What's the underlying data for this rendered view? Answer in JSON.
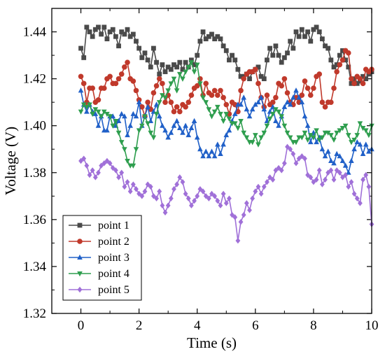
{
  "chart_data": {
    "type": "line",
    "xlabel": "Time (s)",
    "ylabel": "Voltage (V)",
    "xlim": [
      -1,
      10
    ],
    "ylim": [
      1.32,
      1.45
    ],
    "xticks": [
      "0",
      "2",
      "4",
      "6",
      "8",
      "10"
    ],
    "yticks": [
      "1.32",
      "1.34",
      "1.36",
      "1.38",
      "1.40",
      "1.42",
      "1.44"
    ],
    "legend_placement": "bottom-left",
    "series": [
      {
        "name": "point 1",
        "color": "#4a4a4a",
        "marker": "square",
        "x": [
          0,
          0.1,
          0.2,
          0.3,
          0.4,
          0.5,
          0.6,
          0.7,
          0.8,
          0.9,
          1.0,
          1.1,
          1.2,
          1.3,
          1.4,
          1.5,
          1.6,
          1.7,
          1.8,
          1.9,
          2.0,
          2.1,
          2.2,
          2.3,
          2.4,
          2.5,
          2.6,
          2.7,
          2.8,
          2.9,
          3.0,
          3.1,
          3.2,
          3.3,
          3.4,
          3.5,
          3.6,
          3.7,
          3.8,
          3.9,
          4.0,
          4.1,
          4.2,
          4.3,
          4.4,
          4.5,
          4.6,
          4.7,
          4.8,
          4.9,
          5.0,
          5.1,
          5.2,
          5.3,
          5.4,
          5.5,
          5.6,
          5.7,
          5.8,
          5.9,
          6.0,
          6.1,
          6.2,
          6.3,
          6.4,
          6.5,
          6.6,
          6.7,
          6.8,
          6.9,
          7.0,
          7.1,
          7.2,
          7.3,
          7.4,
          7.5,
          7.6,
          7.7,
          7.8,
          7.9,
          8.0,
          8.1,
          8.2,
          8.3,
          8.4,
          8.5,
          8.6,
          8.7,
          8.8,
          8.9,
          9.0,
          9.1,
          9.2,
          9.3,
          9.4,
          9.5,
          9.6,
          9.7,
          9.8,
          9.9,
          10.0
        ],
        "y": [
          1.433,
          1.429,
          1.442,
          1.44,
          1.438,
          1.441,
          1.442,
          1.439,
          1.442,
          1.437,
          1.44,
          1.441,
          1.438,
          1.434,
          1.44,
          1.439,
          1.441,
          1.438,
          1.439,
          1.436,
          1.433,
          1.429,
          1.431,
          1.428,
          1.425,
          1.433,
          1.427,
          1.422,
          1.426,
          1.423,
          1.425,
          1.424,
          1.426,
          1.425,
          1.427,
          1.424,
          1.427,
          1.425,
          1.428,
          1.426,
          1.43,
          1.436,
          1.44,
          1.437,
          1.438,
          1.439,
          1.437,
          1.438,
          1.437,
          1.434,
          1.432,
          1.428,
          1.43,
          1.428,
          1.424,
          1.421,
          1.421,
          1.422,
          1.42,
          1.423,
          1.424,
          1.425,
          1.421,
          1.42,
          1.428,
          1.433,
          1.43,
          1.434,
          1.43,
          1.427,
          1.429,
          1.431,
          1.436,
          1.433,
          1.44,
          1.438,
          1.441,
          1.438,
          1.44,
          1.436,
          1.441,
          1.442,
          1.44,
          1.437,
          1.434,
          1.433,
          1.428,
          1.425,
          1.426,
          1.43,
          1.432,
          1.428,
          1.425,
          1.418,
          1.42,
          1.418,
          1.419,
          1.421,
          1.42,
          1.422,
          1.423
        ]
      },
      {
        "name": "point 2",
        "color": "#c0392b",
        "marker": "circle",
        "x": [
          0,
          0.1,
          0.2,
          0.3,
          0.4,
          0.5,
          0.6,
          0.7,
          0.8,
          0.9,
          1.0,
          1.1,
          1.2,
          1.3,
          1.4,
          1.5,
          1.6,
          1.7,
          1.8,
          1.9,
          2.0,
          2.1,
          2.2,
          2.3,
          2.4,
          2.5,
          2.6,
          2.7,
          2.8,
          2.9,
          3.0,
          3.1,
          3.2,
          3.3,
          3.4,
          3.5,
          3.6,
          3.7,
          3.8,
          3.9,
          4.0,
          4.1,
          4.2,
          4.3,
          4.4,
          4.5,
          4.6,
          4.7,
          4.8,
          4.9,
          5.0,
          5.1,
          5.2,
          5.3,
          5.4,
          5.5,
          5.6,
          5.7,
          5.8,
          5.9,
          6.0,
          6.1,
          6.2,
          6.3,
          6.4,
          6.5,
          6.6,
          6.7,
          6.8,
          6.9,
          7.0,
          7.1,
          7.2,
          7.3,
          7.4,
          7.5,
          7.6,
          7.7,
          7.8,
          7.9,
          8.0,
          8.1,
          8.2,
          8.3,
          8.4,
          8.5,
          8.6,
          8.7,
          8.8,
          8.9,
          9.0,
          9.1,
          9.2,
          9.3,
          9.4,
          9.5,
          9.6,
          9.7,
          9.8,
          9.9,
          10.0
        ],
        "y": [
          1.421,
          1.418,
          1.41,
          1.416,
          1.416,
          1.41,
          1.411,
          1.416,
          1.416,
          1.42,
          1.421,
          1.418,
          1.418,
          1.42,
          1.422,
          1.425,
          1.427,
          1.42,
          1.419,
          1.415,
          1.411,
          1.408,
          1.404,
          1.41,
          1.407,
          1.414,
          1.417,
          1.42,
          1.418,
          1.41,
          1.413,
          1.41,
          1.406,
          1.408,
          1.406,
          1.409,
          1.408,
          1.41,
          1.413,
          1.416,
          1.417,
          1.42,
          1.413,
          1.418,
          1.414,
          1.413,
          1.415,
          1.413,
          1.415,
          1.412,
          1.409,
          1.405,
          1.41,
          1.409,
          1.406,
          1.415,
          1.42,
          1.422,
          1.423,
          1.423,
          1.424,
          1.418,
          1.412,
          1.408,
          1.413,
          1.409,
          1.41,
          1.412,
          1.418,
          1.417,
          1.42,
          1.414,
          1.41,
          1.409,
          1.412,
          1.41,
          1.413,
          1.419,
          1.416,
          1.413,
          1.416,
          1.421,
          1.422,
          1.41,
          1.408,
          1.41,
          1.41,
          1.416,
          1.423,
          1.426,
          1.428,
          1.432,
          1.431,
          1.42,
          1.418,
          1.421,
          1.42,
          1.418,
          1.424,
          1.423,
          1.424
        ]
      },
      {
        "name": "point 3",
        "color": "#2060c8",
        "marker": "triangle-up",
        "x": [
          0,
          0.1,
          0.2,
          0.3,
          0.4,
          0.5,
          0.6,
          0.7,
          0.8,
          0.9,
          1.0,
          1.1,
          1.2,
          1.3,
          1.4,
          1.5,
          1.6,
          1.7,
          1.8,
          1.9,
          2.0,
          2.1,
          2.2,
          2.3,
          2.4,
          2.5,
          2.6,
          2.7,
          2.8,
          2.9,
          3.0,
          3.1,
          3.2,
          3.3,
          3.4,
          3.5,
          3.6,
          3.7,
          3.8,
          3.9,
          4.0,
          4.1,
          4.2,
          4.3,
          4.4,
          4.5,
          4.6,
          4.7,
          4.8,
          4.9,
          5.0,
          5.1,
          5.2,
          5.3,
          5.4,
          5.5,
          5.6,
          5.7,
          5.8,
          5.9,
          6.0,
          6.1,
          6.2,
          6.3,
          6.4,
          6.5,
          6.6,
          6.7,
          6.8,
          6.9,
          7.0,
          7.1,
          7.2,
          7.3,
          7.4,
          7.5,
          7.6,
          7.7,
          7.8,
          7.9,
          8.0,
          8.1,
          8.2,
          8.3,
          8.4,
          8.5,
          8.6,
          8.7,
          8.8,
          8.9,
          9.0,
          9.1,
          9.2,
          9.3,
          9.4,
          9.5,
          9.6,
          9.7,
          9.8,
          9.9,
          10.0
        ],
        "y": [
          1.415,
          1.409,
          1.406,
          1.409,
          1.406,
          1.405,
          1.4,
          1.404,
          1.398,
          1.398,
          1.404,
          1.404,
          1.4,
          1.402,
          1.405,
          1.404,
          1.396,
          1.4,
          1.405,
          1.404,
          1.41,
          1.4,
          1.404,
          1.408,
          1.402,
          1.406,
          1.409,
          1.404,
          1.4,
          1.398,
          1.395,
          1.397,
          1.4,
          1.402,
          1.399,
          1.397,
          1.4,
          1.396,
          1.399,
          1.402,
          1.395,
          1.39,
          1.387,
          1.389,
          1.387,
          1.389,
          1.387,
          1.392,
          1.388,
          1.392,
          1.396,
          1.398,
          1.402,
          1.405,
          1.409,
          1.409,
          1.412,
          1.407,
          1.404,
          1.407,
          1.409,
          1.41,
          1.412,
          1.407,
          1.402,
          1.406,
          1.408,
          1.402,
          1.4,
          1.404,
          1.408,
          1.41,
          1.409,
          1.412,
          1.415,
          1.412,
          1.41,
          1.404,
          1.4,
          1.393,
          1.397,
          1.393,
          1.395,
          1.39,
          1.387,
          1.389,
          1.385,
          1.384,
          1.388,
          1.387,
          1.385,
          1.383,
          1.38,
          1.385,
          1.39,
          1.393,
          1.392,
          1.388,
          1.392,
          1.389,
          1.39
        ]
      },
      {
        "name": "point 4",
        "color": "#2e9e4e",
        "marker": "triangle-down",
        "x": [
          0,
          0.1,
          0.2,
          0.3,
          0.4,
          0.5,
          0.6,
          0.7,
          0.8,
          0.9,
          1.0,
          1.1,
          1.2,
          1.3,
          1.4,
          1.5,
          1.6,
          1.7,
          1.8,
          1.9,
          2.0,
          2.1,
          2.2,
          2.3,
          2.4,
          2.5,
          2.6,
          2.7,
          2.8,
          2.9,
          3.0,
          3.1,
          3.2,
          3.3,
          3.4,
          3.5,
          3.6,
          3.7,
          3.8,
          3.9,
          4.0,
          4.1,
          4.2,
          4.3,
          4.4,
          4.5,
          4.6,
          4.7,
          4.8,
          4.9,
          5.0,
          5.1,
          5.2,
          5.3,
          5.4,
          5.5,
          5.6,
          5.7,
          5.8,
          5.9,
          6.0,
          6.1,
          6.2,
          6.3,
          6.4,
          6.5,
          6.6,
          6.7,
          6.8,
          6.9,
          7.0,
          7.1,
          7.2,
          7.3,
          7.4,
          7.5,
          7.6,
          7.7,
          7.8,
          7.9,
          8.0,
          8.1,
          8.2,
          8.3,
          8.4,
          8.5,
          8.6,
          8.7,
          8.8,
          8.9,
          9.0,
          9.1,
          9.2,
          9.3,
          9.4,
          9.5,
          9.6,
          9.7,
          9.8,
          9.9,
          10.0
        ],
        "y": [
          1.406,
          1.409,
          1.408,
          1.409,
          1.405,
          1.407,
          1.406,
          1.404,
          1.406,
          1.405,
          1.404,
          1.4,
          1.402,
          1.397,
          1.393,
          1.39,
          1.385,
          1.383,
          1.383,
          1.39,
          1.398,
          1.4,
          1.404,
          1.401,
          1.397,
          1.395,
          1.405,
          1.41,
          1.413,
          1.412,
          1.415,
          1.418,
          1.42,
          1.415,
          1.422,
          1.42,
          1.423,
          1.425,
          1.427,
          1.423,
          1.426,
          1.418,
          1.412,
          1.41,
          1.407,
          1.404,
          1.406,
          1.408,
          1.405,
          1.402,
          1.405,
          1.403,
          1.401,
          1.401,
          1.399,
          1.402,
          1.397,
          1.395,
          1.393,
          1.393,
          1.396,
          1.392,
          1.395,
          1.397,
          1.4,
          1.403,
          1.405,
          1.407,
          1.406,
          1.404,
          1.4,
          1.397,
          1.395,
          1.393,
          1.393,
          1.395,
          1.395,
          1.397,
          1.394,
          1.396,
          1.395,
          1.398,
          1.394,
          1.395,
          1.397,
          1.397,
          1.396,
          1.394,
          1.397,
          1.398,
          1.399,
          1.4,
          1.396,
          1.393,
          1.394,
          1.396,
          1.401,
          1.399,
          1.398,
          1.396,
          1.4
        ]
      },
      {
        "name": "point 5",
        "color": "#a070d8",
        "marker": "diamond",
        "x": [
          0,
          0.1,
          0.2,
          0.3,
          0.4,
          0.5,
          0.6,
          0.7,
          0.8,
          0.9,
          1.0,
          1.1,
          1.2,
          1.3,
          1.4,
          1.5,
          1.6,
          1.7,
          1.8,
          1.9,
          2.0,
          2.1,
          2.2,
          2.3,
          2.4,
          2.5,
          2.6,
          2.7,
          2.8,
          2.9,
          3.0,
          3.1,
          3.2,
          3.3,
          3.4,
          3.5,
          3.6,
          3.7,
          3.8,
          3.9,
          4.0,
          4.1,
          4.2,
          4.3,
          4.4,
          4.5,
          4.6,
          4.7,
          4.8,
          4.9,
          5.0,
          5.1,
          5.2,
          5.3,
          5.4,
          5.5,
          5.6,
          5.7,
          5.8,
          5.9,
          6.0,
          6.1,
          6.2,
          6.3,
          6.4,
          6.5,
          6.6,
          6.7,
          6.8,
          6.9,
          7.0,
          7.1,
          7.2,
          7.3,
          7.4,
          7.5,
          7.6,
          7.7,
          7.8,
          7.9,
          8.0,
          8.1,
          8.2,
          8.3,
          8.4,
          8.5,
          8.6,
          8.7,
          8.8,
          8.9,
          9.0,
          9.1,
          9.2,
          9.3,
          9.4,
          9.5,
          9.6,
          9.7,
          9.8,
          9.9,
          10.0
        ],
        "y": [
          1.385,
          1.386,
          1.383,
          1.379,
          1.381,
          1.378,
          1.38,
          1.383,
          1.384,
          1.385,
          1.384,
          1.382,
          1.381,
          1.378,
          1.38,
          1.374,
          1.376,
          1.372,
          1.375,
          1.373,
          1.371,
          1.37,
          1.372,
          1.375,
          1.374,
          1.37,
          1.369,
          1.372,
          1.366,
          1.363,
          1.366,
          1.369,
          1.373,
          1.375,
          1.378,
          1.376,
          1.371,
          1.369,
          1.366,
          1.368,
          1.37,
          1.373,
          1.372,
          1.37,
          1.369,
          1.371,
          1.37,
          1.368,
          1.366,
          1.371,
          1.367,
          1.369,
          1.362,
          1.361,
          1.351,
          1.359,
          1.362,
          1.367,
          1.364,
          1.369,
          1.372,
          1.374,
          1.371,
          1.374,
          1.376,
          1.378,
          1.377,
          1.381,
          1.382,
          1.381,
          1.384,
          1.391,
          1.39,
          1.388,
          1.384,
          1.386,
          1.387,
          1.386,
          1.379,
          1.378,
          1.376,
          1.377,
          1.381,
          1.375,
          1.377,
          1.38,
          1.381,
          1.377,
          1.381,
          1.38,
          1.378,
          1.379,
          1.374,
          1.376,
          1.371,
          1.369,
          1.367,
          1.377,
          1.379,
          1.374,
          1.358
        ]
      }
    ]
  }
}
